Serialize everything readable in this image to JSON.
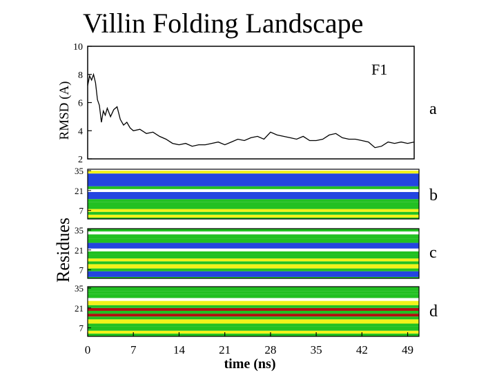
{
  "slide": {
    "title": "Villin Folding Landscape"
  },
  "colors": {
    "helix": "#2445e0",
    "strand": "#f2f21a",
    "turn": "#22c022",
    "coil": "#ffffff",
    "other": "#b01010"
  },
  "chart_data": [
    {
      "type": "line",
      "panel_letter": "a",
      "series": [
        {
          "name": "F1",
          "x": [
            0,
            0.3,
            0.6,
            0.9,
            1.2,
            1.5,
            1.8,
            2.1,
            2.4,
            2.7,
            3,
            3.5,
            4,
            4.5,
            5,
            5.5,
            6,
            6.5,
            7,
            8,
            9,
            10,
            11,
            12,
            13,
            14,
            15,
            16,
            17,
            18,
            19,
            20,
            21,
            22,
            23,
            24,
            25,
            26,
            27,
            28,
            29,
            30,
            31,
            32,
            33,
            34,
            35,
            36,
            37,
            38,
            39,
            40,
            41,
            42,
            43,
            44,
            45,
            46,
            47,
            48,
            49,
            50
          ],
          "y": [
            7.2,
            7.9,
            7.6,
            8.0,
            7.4,
            6.2,
            5.8,
            4.6,
            5.4,
            5.1,
            5.6,
            5.0,
            5.5,
            5.7,
            4.8,
            4.4,
            4.6,
            4.2,
            4.0,
            4.1,
            3.8,
            3.9,
            3.6,
            3.4,
            3.1,
            3.0,
            3.1,
            2.9,
            3.0,
            3.0,
            3.1,
            3.2,
            3.0,
            3.2,
            3.4,
            3.3,
            3.5,
            3.6,
            3.4,
            3.9,
            3.7,
            3.6,
            3.5,
            3.4,
            3.6,
            3.3,
            3.3,
            3.4,
            3.7,
            3.8,
            3.5,
            3.4,
            3.4,
            3.3,
            3.2,
            2.8,
            2.9,
            3.2,
            3.1,
            3.2,
            3.1,
            3.2
          ]
        }
      ],
      "ylabel": "RMSD (A)",
      "ylim": [
        2,
        10
      ],
      "yticks": [
        2,
        4,
        6,
        8,
        10
      ],
      "xlim": [
        0,
        50
      ]
    },
    {
      "type": "heatmap",
      "panel_letter": "b",
      "ylim": [
        1,
        36
      ],
      "yticks": [
        7,
        21,
        35
      ],
      "bands": [
        {
          "from": 1,
          "to": 2,
          "color": "turn"
        },
        {
          "from": 2,
          "to": 4,
          "color": "strand"
        },
        {
          "from": 4,
          "to": 6,
          "color": "turn"
        },
        {
          "from": 6,
          "to": 8,
          "color": "strand"
        },
        {
          "from": 8,
          "to": 10,
          "color": "turn"
        },
        {
          "from": 10,
          "to": 13,
          "color": "turn"
        },
        {
          "from": 13,
          "to": 15,
          "color": "turn"
        },
        {
          "from": 15,
          "to": 20,
          "color": "helix"
        },
        {
          "from": 20,
          "to": 22,
          "color": "coil"
        },
        {
          "from": 22,
          "to": 24,
          "color": "turn"
        },
        {
          "from": 24,
          "to": 33,
          "color": "helix"
        },
        {
          "from": 33,
          "to": 35,
          "color": "strand"
        },
        {
          "from": 35,
          "to": 36,
          "color": "coil"
        }
      ]
    },
    {
      "type": "heatmap",
      "panel_letter": "c",
      "ylim": [
        1,
        36
      ],
      "yticks": [
        7,
        21,
        35
      ],
      "bands": [
        {
          "from": 1,
          "to": 2,
          "color": "turn"
        },
        {
          "from": 2,
          "to": 6,
          "color": "helix"
        },
        {
          "from": 6,
          "to": 8,
          "color": "turn"
        },
        {
          "from": 8,
          "to": 11,
          "color": "strand"
        },
        {
          "from": 11,
          "to": 13,
          "color": "turn"
        },
        {
          "from": 13,
          "to": 15,
          "color": "strand"
        },
        {
          "from": 15,
          "to": 18,
          "color": "turn"
        },
        {
          "from": 18,
          "to": 20,
          "color": "turn"
        },
        {
          "from": 20,
          "to": 22,
          "color": "coil"
        },
        {
          "from": 22,
          "to": 26,
          "color": "helix"
        },
        {
          "from": 26,
          "to": 29,
          "color": "turn"
        },
        {
          "from": 29,
          "to": 32,
          "color": "turn"
        },
        {
          "from": 32,
          "to": 34,
          "color": "coil"
        },
        {
          "from": 34,
          "to": 36,
          "color": "turn"
        }
      ]
    },
    {
      "type": "heatmap",
      "panel_letter": "d",
      "ylim": [
        1,
        36
      ],
      "yticks": [
        7,
        21,
        35
      ],
      "bands": [
        {
          "from": 1,
          "to": 3,
          "color": "turn"
        },
        {
          "from": 3,
          "to": 5,
          "color": "strand"
        },
        {
          "from": 5,
          "to": 8,
          "color": "turn"
        },
        {
          "from": 8,
          "to": 10,
          "color": "turn"
        },
        {
          "from": 10,
          "to": 13,
          "color": "strand"
        },
        {
          "from": 13,
          "to": 15,
          "color": "turn"
        },
        {
          "from": 15,
          "to": 17,
          "color": "other"
        },
        {
          "from": 17,
          "to": 19,
          "color": "turn"
        },
        {
          "from": 19,
          "to": 21,
          "color": "other"
        },
        {
          "from": 21,
          "to": 23,
          "color": "turn"
        },
        {
          "from": 23,
          "to": 26,
          "color": "strand"
        },
        {
          "from": 26,
          "to": 28,
          "color": "coil"
        },
        {
          "from": 28,
          "to": 31,
          "color": "turn"
        },
        {
          "from": 31,
          "to": 33,
          "color": "turn"
        },
        {
          "from": 33,
          "to": 36,
          "color": "turn"
        }
      ]
    }
  ],
  "shared": {
    "ylabel_residues": "Residues",
    "xlabel": "time (ns)",
    "xticks": [
      0,
      7,
      14,
      21,
      28,
      35,
      42,
      49
    ]
  }
}
